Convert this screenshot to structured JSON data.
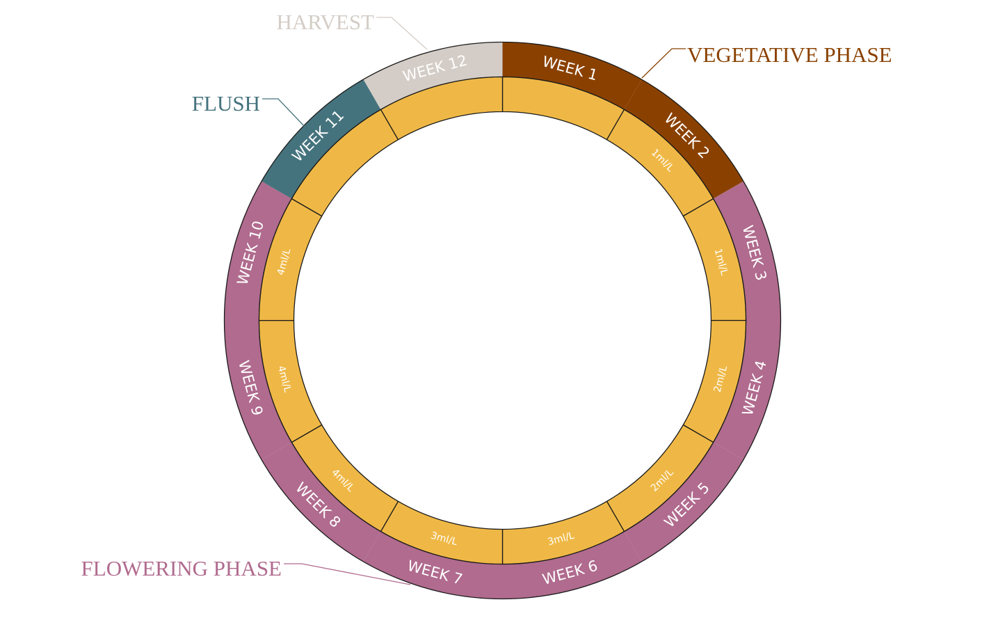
{
  "colors": {
    "vegetative": "#8A4100",
    "flowering": "#B06B8E",
    "flush": "#45737D",
    "harvest": "#D4CDC7",
    "dose_ring": "#EFB846",
    "outline": "#1a1a1a",
    "week_text": "#ffffff",
    "dose_text": "#ffffff"
  },
  "phases": [
    {
      "id": "vegetative",
      "label": "VEGETATIVE PHASE"
    },
    {
      "id": "flowering",
      "label": "FLOWERING PHASE"
    },
    {
      "id": "flush",
      "label": "FLUSH"
    },
    {
      "id": "harvest",
      "label": "HARVEST"
    }
  ],
  "weeks": [
    {
      "label": "WEEK 1",
      "phase": "vegetative",
      "dose": ""
    },
    {
      "label": "WEEK 2",
      "phase": "vegetative",
      "dose": "1ml/L"
    },
    {
      "label": "WEEK 3",
      "phase": "flowering",
      "dose": "1ml/L"
    },
    {
      "label": "WEEK 4",
      "phase": "flowering",
      "dose": "2ml/L"
    },
    {
      "label": "WEEK 5",
      "phase": "flowering",
      "dose": "2ml/L"
    },
    {
      "label": "WEEK 6",
      "phase": "flowering",
      "dose": "3ml/L"
    },
    {
      "label": "WEEK 7",
      "phase": "flowering",
      "dose": "3ml/L"
    },
    {
      "label": "WEEK 8",
      "phase": "flowering",
      "dose": "4ml/L"
    },
    {
      "label": "WEEK 9",
      "phase": "flowering",
      "dose": "4ml/L"
    },
    {
      "label": "WEEK 10",
      "phase": "flowering",
      "dose": "4ml/L"
    },
    {
      "label": "WEEK 11",
      "phase": "flush",
      "dose": ""
    },
    {
      "label": "WEEK 12",
      "phase": "harvest",
      "dose": ""
    }
  ]
}
